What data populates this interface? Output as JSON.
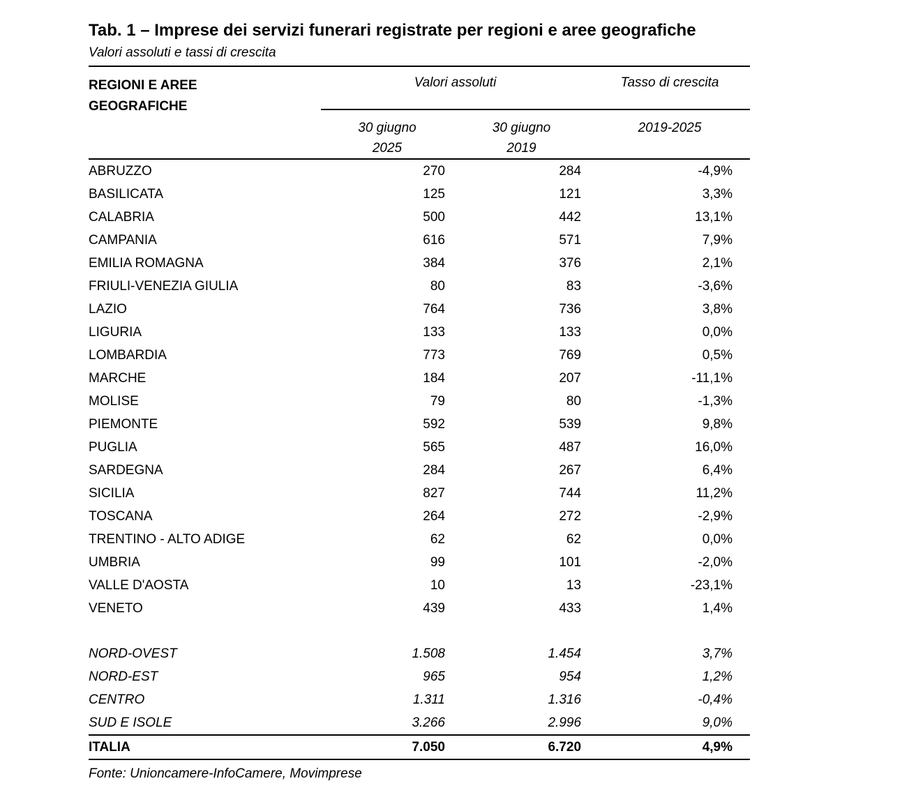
{
  "title": "Tab. 1 – Imprese dei servizi funerari registrate per regioni e aree geografiche",
  "subtitle": "Valori assoluti e tassi di crescita",
  "table": {
    "region_header": "REGIONI E AREE GEOGRAFICHE",
    "group_headers": {
      "valori": "Valori assoluti",
      "tasso": "Tasso di crescita"
    },
    "sub_headers": {
      "col_2025": {
        "line1": "30 giugno",
        "line2": "2025"
      },
      "col_2019": {
        "line1": "30 giugno",
        "line2": "2019"
      },
      "growth": "2019-2025"
    },
    "regions": [
      {
        "name": "ABRUZZO",
        "v2025": "270",
        "v2019": "284",
        "growth": "-4,9%"
      },
      {
        "name": "BASILICATA",
        "v2025": "125",
        "v2019": "121",
        "growth": "3,3%"
      },
      {
        "name": "CALABRIA",
        "v2025": "500",
        "v2019": "442",
        "growth": "13,1%"
      },
      {
        "name": "CAMPANIA",
        "v2025": "616",
        "v2019": "571",
        "growth": "7,9%"
      },
      {
        "name": "EMILIA ROMAGNA",
        "v2025": "384",
        "v2019": "376",
        "growth": "2,1%"
      },
      {
        "name": "FRIULI-VENEZIA GIULIA",
        "v2025": "80",
        "v2019": "83",
        "growth": "-3,6%"
      },
      {
        "name": "LAZIO",
        "v2025": "764",
        "v2019": "736",
        "growth": "3,8%"
      },
      {
        "name": "LIGURIA",
        "v2025": "133",
        "v2019": "133",
        "growth": "0,0%"
      },
      {
        "name": "LOMBARDIA",
        "v2025": "773",
        "v2019": "769",
        "growth": "0,5%"
      },
      {
        "name": "MARCHE",
        "v2025": "184",
        "v2019": "207",
        "growth": "-11,1%"
      },
      {
        "name": "MOLISE",
        "v2025": "79",
        "v2019": "80",
        "growth": "-1,3%"
      },
      {
        "name": "PIEMONTE",
        "v2025": "592",
        "v2019": "539",
        "growth": "9,8%"
      },
      {
        "name": "PUGLIA",
        "v2025": "565",
        "v2019": "487",
        "growth": "16,0%"
      },
      {
        "name": "SARDEGNA",
        "v2025": "284",
        "v2019": "267",
        "growth": "6,4%"
      },
      {
        "name": "SICILIA",
        "v2025": "827",
        "v2019": "744",
        "growth": "11,2%"
      },
      {
        "name": "TOSCANA",
        "v2025": "264",
        "v2019": "272",
        "growth": "-2,9%"
      },
      {
        "name": "TRENTINO - ALTO ADIGE",
        "v2025": "62",
        "v2019": "62",
        "growth": "0,0%"
      },
      {
        "name": "UMBRIA",
        "v2025": "99",
        "v2019": "101",
        "growth": "-2,0%"
      },
      {
        "name": "VALLE D'AOSTA",
        "v2025": "10",
        "v2019": "13",
        "growth": "-23,1%"
      },
      {
        "name": "VENETO",
        "v2025": "439",
        "v2019": "433",
        "growth": "1,4%"
      }
    ],
    "aggregates": [
      {
        "name": "NORD-OVEST",
        "v2025": "1.508",
        "v2019": "1.454",
        "growth": "3,7%"
      },
      {
        "name": "NORD-EST",
        "v2025": "965",
        "v2019": "954",
        "growth": "1,2%"
      },
      {
        "name": "CENTRO",
        "v2025": "1.311",
        "v2019": "1.316",
        "growth": "-0,4%"
      },
      {
        "name": "SUD E ISOLE",
        "v2025": "3.266",
        "v2019": "2.996",
        "growth": "9,0%"
      }
    ],
    "total": {
      "name": "ITALIA",
      "v2025": "7.050",
      "v2019": "6.720",
      "growth": "4,9%"
    }
  },
  "source": "Fonte: Unioncamere-InfoCamere, Movimprese"
}
